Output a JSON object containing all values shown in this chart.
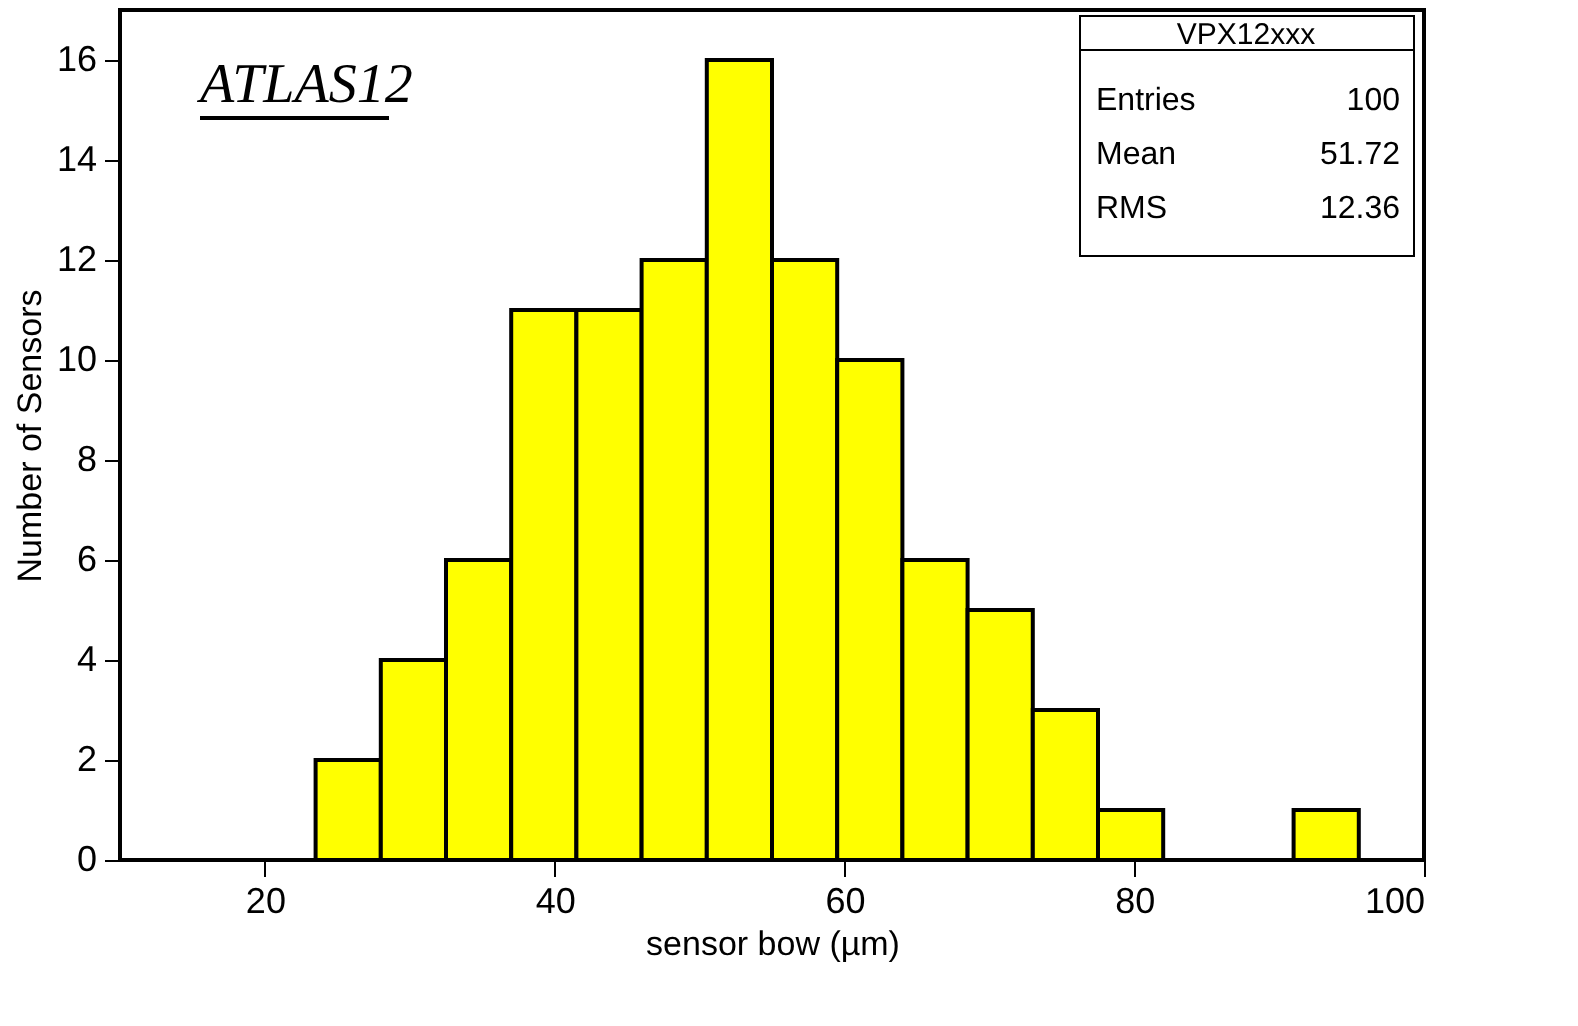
{
  "chart_data": {
    "type": "histogram",
    "xlabel": "sensor bow (µm)",
    "ylabel": "Number of Sensors",
    "bins": [
      10,
      14.5,
      19,
      23.5,
      28,
      32.5,
      37,
      41.5,
      46,
      50.5,
      55,
      59.5,
      64,
      68.5,
      73,
      77.5,
      82,
      86.5,
      91,
      95.5,
      100
    ],
    "values": [
      0,
      0,
      0,
      2,
      4,
      6,
      11,
      11,
      12,
      16,
      12,
      10,
      6,
      5,
      3,
      1,
      0,
      0,
      1,
      0
    ],
    "color": "#ffff00",
    "xlim": [
      10,
      100
    ],
    "xticks": [
      20,
      40,
      60,
      80,
      100
    ],
    "ylim": [
      0,
      17
    ],
    "yticks": [
      0,
      2,
      4,
      6,
      8,
      10,
      12,
      14,
      16
    ],
    "grid": false,
    "annotations": [
      "ATLAS12",
      "VPX12xxx",
      "Entries",
      "100",
      "Mean",
      "51.72",
      "RMS",
      "12.36"
    ]
  }
}
